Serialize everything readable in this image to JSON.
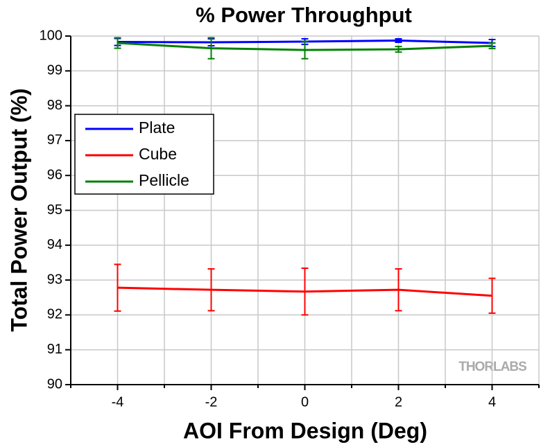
{
  "chart_data": {
    "type": "line",
    "title": "% Power Throughput",
    "x_label": "AOI From Design (Deg)",
    "y_label": "Total Power Output (%)",
    "watermark": "THORLABS",
    "x": [
      -4,
      -2,
      0,
      2,
      4
    ],
    "series": [
      {
        "name": "Plate",
        "color": "#0000ff",
        "values": [
          99.83,
          99.82,
          99.84,
          99.87,
          99.8
        ],
        "errors": [
          0.1,
          0.1,
          0.08,
          0.05,
          0.1
        ]
      },
      {
        "name": "Cube",
        "color": "#ff0000",
        "values": [
          92.78,
          92.72,
          92.67,
          92.72,
          92.55
        ],
        "errors": [
          0.67,
          0.6,
          0.67,
          0.6,
          0.5
        ]
      },
      {
        "name": "Pellicle",
        "color": "#008000",
        "values": [
          99.8,
          99.65,
          99.6,
          99.62,
          99.72
        ],
        "errors": [
          0.15,
          0.3,
          0.25,
          0.08,
          0.08
        ]
      }
    ],
    "xlim": [
      -5,
      5
    ],
    "ylim": [
      90,
      100
    ],
    "xticks": [
      -4,
      -2,
      0,
      2,
      4
    ],
    "xminor": [
      -5,
      -3,
      -1,
      1,
      3,
      5
    ],
    "yticks": [
      90,
      91,
      92,
      93,
      94,
      95,
      96,
      97,
      98,
      99,
      100
    ],
    "grid": true,
    "legend": "upper left"
  }
}
